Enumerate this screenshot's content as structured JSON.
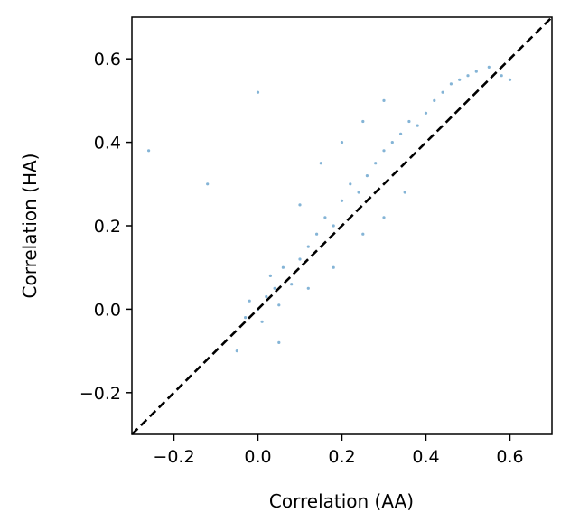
{
  "chart_data": {
    "type": "scatter",
    "title": "",
    "xlabel": "Correlation (AA)",
    "ylabel": "Correlation (HA)",
    "xlim": [
      -0.3,
      0.7
    ],
    "ylim": [
      -0.3,
      0.7
    ],
    "xticks": [
      -0.2,
      0.0,
      0.2,
      0.4,
      0.6
    ],
    "xtick_labels": [
      "−0.2",
      "0.0",
      "0.2",
      "0.4",
      "0.6"
    ],
    "yticks": [
      -0.2,
      0.0,
      0.2,
      0.4,
      0.6
    ],
    "ytick_labels": [
      "−0.2",
      "0.0",
      "0.2",
      "0.4",
      "0.6"
    ],
    "grid": false,
    "legend": "none",
    "point_color": "#1f77b4",
    "reference_line": {
      "style": "dashed",
      "color": "#000000",
      "from": [
        -0.3,
        -0.3
      ],
      "to": [
        0.7,
        0.7
      ]
    },
    "series": [
      {
        "points": [
          [
            0.0,
            0.0
          ],
          [
            0.02,
            0.03
          ],
          [
            0.04,
            0.05
          ],
          [
            -0.02,
            0.02
          ],
          [
            0.01,
            -0.03
          ],
          [
            0.03,
            0.08
          ],
          [
            0.05,
            0.01
          ],
          [
            -0.03,
            -0.02
          ],
          [
            0.06,
            0.1
          ],
          [
            0.08,
            0.06
          ],
          [
            0.1,
            0.12
          ],
          [
            0.12,
            0.15
          ],
          [
            0.14,
            0.18
          ],
          [
            0.16,
            0.22
          ],
          [
            0.18,
            0.2
          ],
          [
            0.2,
            0.26
          ],
          [
            0.22,
            0.3
          ],
          [
            0.24,
            0.28
          ],
          [
            0.26,
            0.32
          ],
          [
            0.28,
            0.35
          ],
          [
            0.3,
            0.38
          ],
          [
            0.32,
            0.4
          ],
          [
            0.34,
            0.42
          ],
          [
            0.36,
            0.45
          ],
          [
            0.38,
            0.44
          ],
          [
            0.4,
            0.47
          ],
          [
            0.42,
            0.5
          ],
          [
            0.44,
            0.52
          ],
          [
            0.46,
            0.54
          ],
          [
            0.48,
            0.55
          ],
          [
            0.5,
            0.56
          ],
          [
            0.52,
            0.57
          ],
          [
            0.55,
            0.58
          ],
          [
            0.58,
            0.56
          ],
          [
            0.6,
            0.55
          ],
          [
            0.1,
            0.25
          ],
          [
            0.15,
            0.35
          ],
          [
            0.2,
            0.4
          ],
          [
            0.25,
            0.45
          ],
          [
            0.3,
            0.5
          ],
          [
            0.12,
            0.05
          ],
          [
            0.18,
            0.1
          ],
          [
            0.25,
            0.18
          ],
          [
            0.3,
            0.22
          ],
          [
            0.35,
            0.28
          ],
          [
            -0.26,
            0.38
          ],
          [
            -0.12,
            0.3
          ],
          [
            0.0,
            0.52
          ],
          [
            -0.05,
            -0.1
          ],
          [
            0.05,
            -0.08
          ]
        ]
      }
    ]
  }
}
